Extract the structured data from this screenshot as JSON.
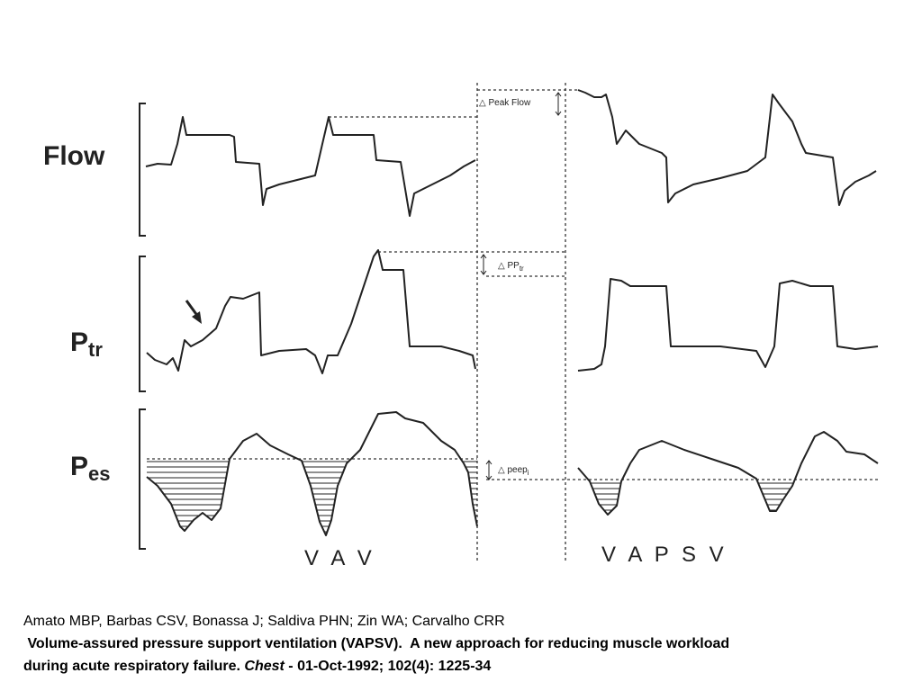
{
  "figure": {
    "traces": [
      {
        "label": "Flow"
      },
      {
        "label": "P",
        "sub": "tr"
      },
      {
        "label": "P",
        "sub": "es"
      }
    ],
    "annotations": [
      {
        "symbol": "△",
        "text": "Peak Flow"
      },
      {
        "symbol": "△",
        "text": "PP",
        "sub": "tr"
      },
      {
        "symbol": "△",
        "text": "peep",
        "sub": "i"
      }
    ],
    "modes": [
      "V A V",
      "V A P S V"
    ]
  },
  "citation": {
    "authors": "Amato MBP, Barbas CSV, Bonassa J; Saldiva PHN; Zin WA; Carvalho CRR",
    "title_lines": [
      " Volume-assured pressure support ventilation (VAPSV).  A new approach for reducing muscle workload",
      "during acute respiratory failure."
    ],
    "journal": "Chest",
    "details": " - 01-Oct-1992; 102(4): 1225-34"
  }
}
